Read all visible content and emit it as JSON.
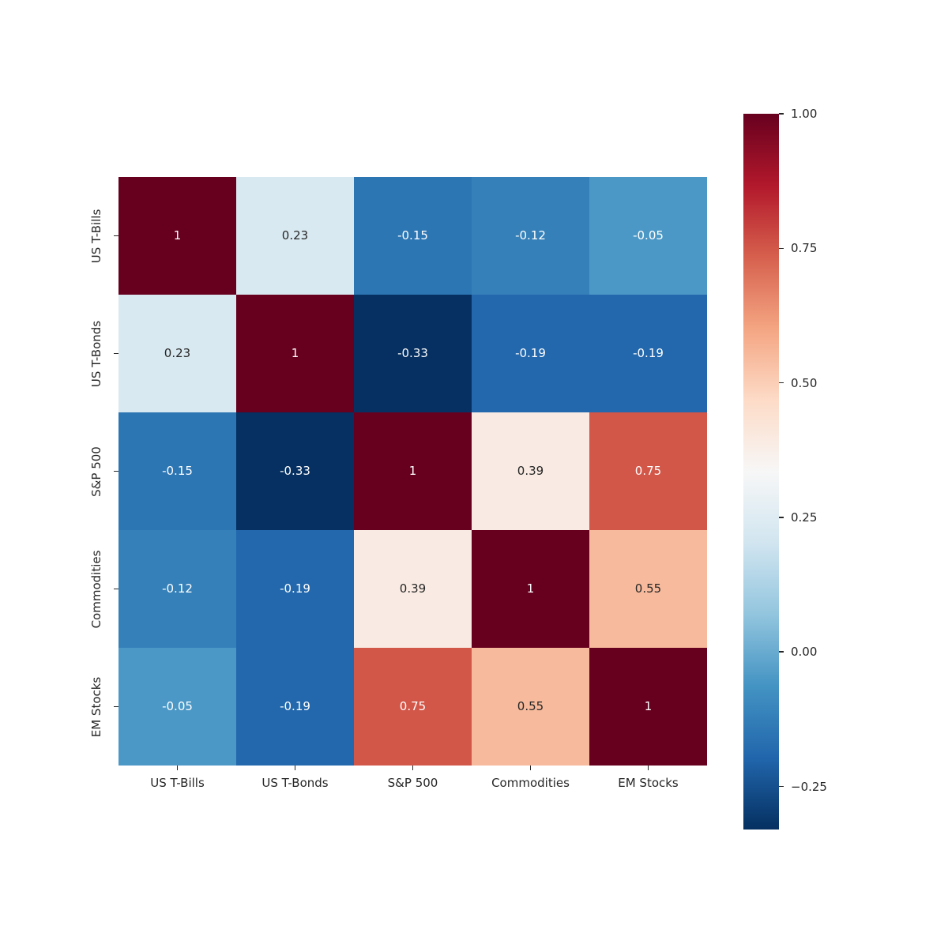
{
  "chart_data": {
    "type": "heatmap",
    "title": "",
    "categories": [
      "US T-Bills",
      "US T-Bonds",
      "S&P 500",
      "Commodities",
      "EM Stocks"
    ],
    "matrix": [
      [
        1.0,
        0.23,
        -0.15,
        -0.12,
        -0.05
      ],
      [
        0.23,
        1.0,
        -0.33,
        -0.19,
        -0.19
      ],
      [
        -0.15,
        -0.33,
        1.0,
        0.39,
        0.75
      ],
      [
        -0.12,
        -0.19,
        0.39,
        1.0,
        0.55
      ],
      [
        -0.05,
        -0.19,
        0.75,
        0.55,
        1.0
      ]
    ],
    "cell_labels": [
      [
        "1",
        "0.23",
        "-0.15",
        "-0.12",
        "-0.05"
      ],
      [
        "0.23",
        "1",
        "-0.33",
        "-0.19",
        "-0.19"
      ],
      [
        "-0.15",
        "-0.33",
        "1",
        "0.39",
        "0.75"
      ],
      [
        "-0.12",
        "-0.19",
        "0.39",
        "1",
        "0.55"
      ],
      [
        "-0.05",
        "-0.19",
        "0.75",
        "0.55",
        "1"
      ]
    ],
    "vmin": -0.33,
    "vmax": 1.0,
    "colormap": "RdBu_r",
    "colormap_stops": [
      "#053061",
      "#2166ac",
      "#4393c3",
      "#92c5de",
      "#d1e5f0",
      "#f7f7f7",
      "#fddbc7",
      "#f4a582",
      "#d6604d",
      "#b2182b",
      "#67001f"
    ],
    "annotation_color_dark": "#262626",
    "annotation_color_light": "#ffffff",
    "grid": false,
    "legend_position": "colorbar-right",
    "colorbar": {
      "tick_values": [
        1.0,
        0.75,
        0.5,
        0.25,
        0.0,
        -0.25
      ],
      "tick_labels": [
        "1.00",
        "0.75",
        "0.50",
        "0.25",
        "0.00",
        "−0.25"
      ]
    }
  }
}
